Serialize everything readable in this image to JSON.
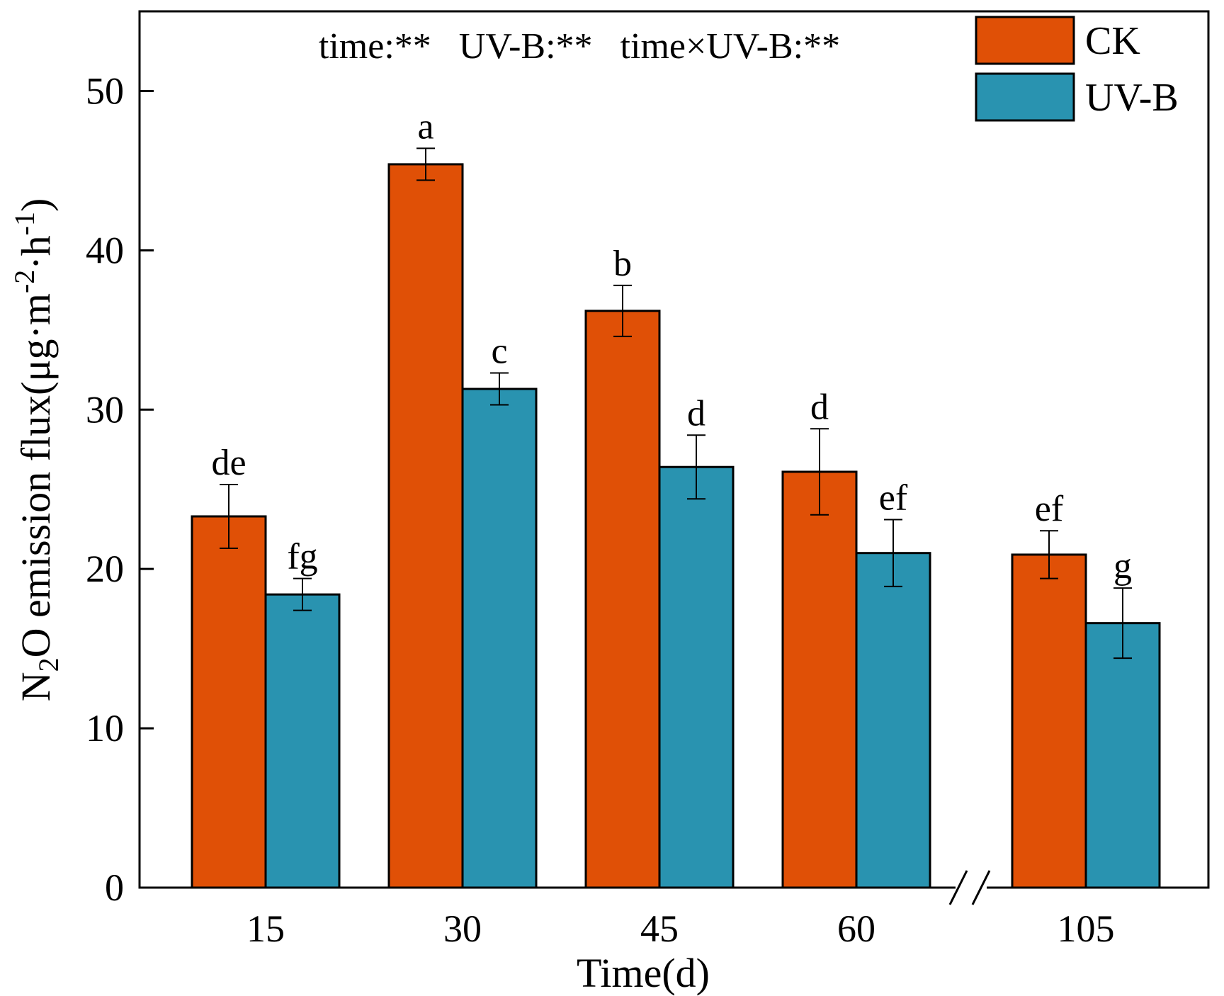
{
  "chart_data": {
    "type": "bar",
    "title": "",
    "annotation": "time:**   UV-B:**   time×UV-B:**",
    "xlabel": "Time(d)",
    "ylabel": {
      "prefix": "N",
      "sub": "2",
      "mid": "O emission flux(μg·m",
      "sup1": "-2",
      "mid2": "·h",
      "sup2": "-1",
      "suffix": ")"
    },
    "categories": [
      "15",
      "30",
      "45",
      "60",
      "105"
    ],
    "axis_break_after": "60",
    "axis_break_symbol": "//",
    "ylim": [
      0,
      55
    ],
    "yticks": [
      0,
      10,
      20,
      30,
      40,
      50
    ],
    "ytick_labels": [
      "0",
      "10",
      "20",
      "30",
      "40",
      "50"
    ],
    "legend_position": "top-right",
    "series": [
      {
        "name": "CK",
        "color": "#E05006",
        "values": [
          23.3,
          45.4,
          36.2,
          26.1,
          20.9
        ],
        "errors": [
          2.0,
          1.0,
          1.6,
          2.7,
          1.5
        ],
        "sig": [
          "de",
          "a",
          "b",
          "d",
          "ef"
        ]
      },
      {
        "name": "UV-B",
        "color": "#2993B0",
        "values": [
          18.4,
          31.3,
          26.4,
          21.0,
          16.6
        ],
        "errors": [
          1.0,
          1.0,
          2.0,
          2.1,
          2.2
        ],
        "sig": [
          "fg",
          "c",
          "d",
          "ef",
          "g"
        ]
      }
    ]
  }
}
